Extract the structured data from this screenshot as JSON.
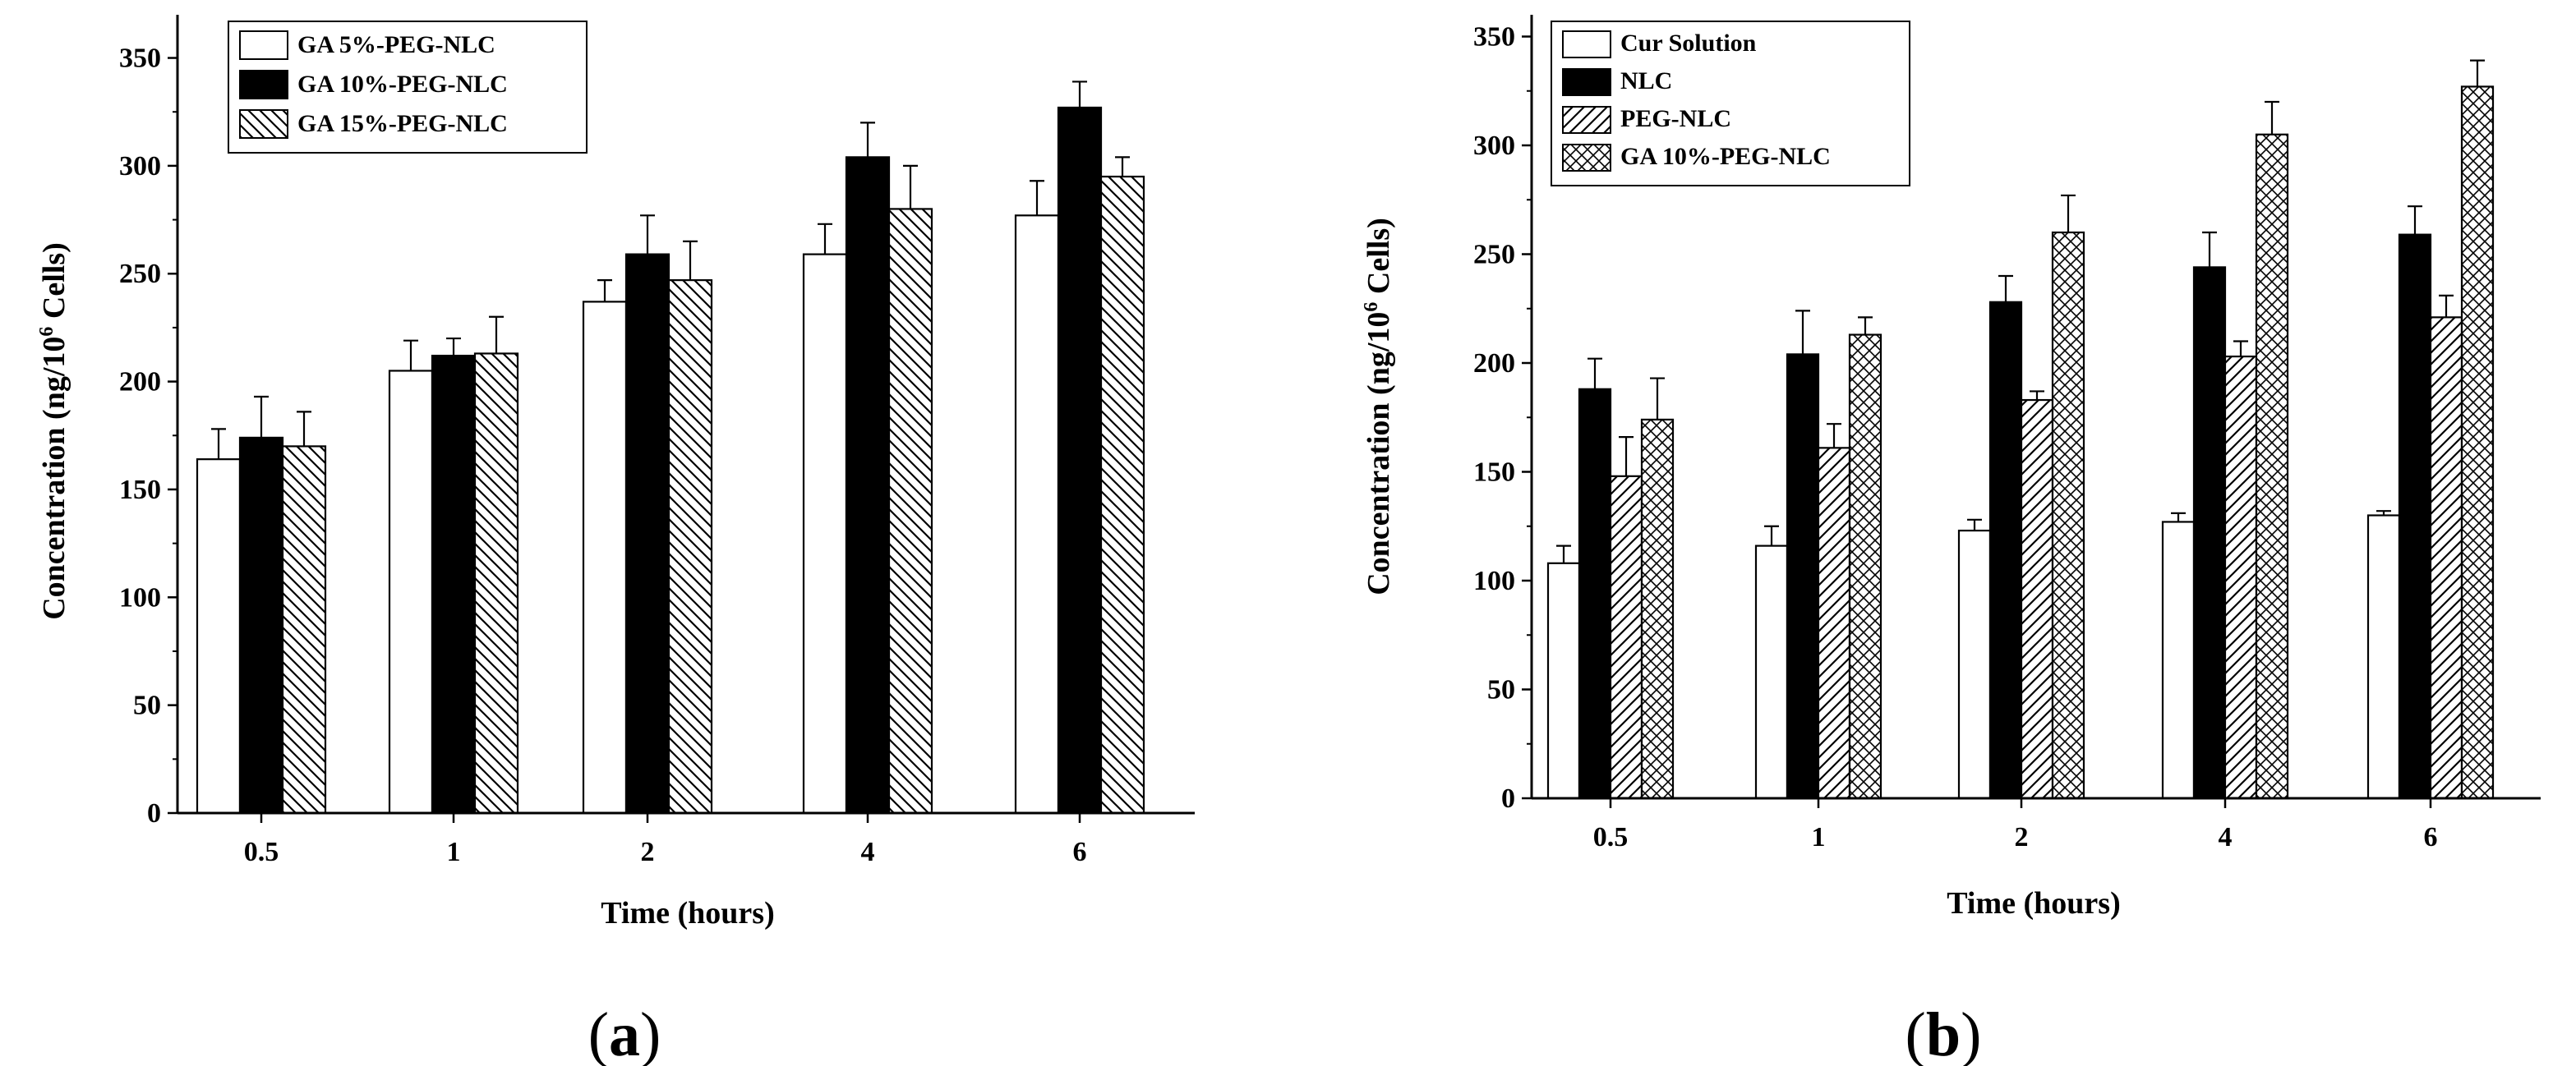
{
  "chart_data": [
    {
      "type": "bar",
      "panel_label": "a",
      "xlabel": "Time (hours)",
      "ylabel": "Concentration (ng/10",
      "ylabel_superscript": "6",
      "ylabel_suffix": " Cells)",
      "ylim": [
        0,
        370
      ],
      "yticks": [
        "0",
        "50",
        "100",
        "150",
        "200",
        "250",
        "300",
        "350"
      ],
      "categories": [
        "0.5",
        "1",
        "2",
        "4",
        "6"
      ],
      "legend_position": "top-left",
      "series": [
        {
          "name": "GA 5%-PEG-NLC",
          "fill": "white",
          "values": [
            164,
            205,
            237,
            259,
            277
          ],
          "errors": [
            14,
            14,
            10,
            14,
            16
          ]
        },
        {
          "name": "GA 10%-PEG-NLC",
          "fill": "black",
          "values": [
            174,
            212,
            259,
            304,
            327
          ],
          "errors": [
            19,
            8,
            18,
            16,
            12
          ]
        },
        {
          "name": "GA 15%-PEG-NLC",
          "fill": "hatch",
          "values": [
            170,
            213,
            247,
            280,
            295
          ],
          "errors": [
            16,
            17,
            18,
            20,
            9
          ]
        }
      ]
    },
    {
      "type": "bar",
      "panel_label": "b",
      "xlabel": "Time (hours)",
      "ylabel": "Concentration (ng/10",
      "ylabel_superscript": "6",
      "ylabel_suffix": " Cells)",
      "ylim": [
        0,
        360
      ],
      "yticks": [
        "0",
        "50",
        "100",
        "150",
        "200",
        "250",
        "300",
        "350"
      ],
      "categories": [
        "0.5",
        "1",
        "2",
        "4",
        "6"
      ],
      "legend_position": "top-left",
      "series": [
        {
          "name": "Cur Solution",
          "fill": "white",
          "values": [
            108,
            116,
            123,
            127,
            130
          ],
          "errors": [
            8,
            9,
            5,
            4,
            2
          ]
        },
        {
          "name": "NLC",
          "fill": "black",
          "values": [
            188,
            204,
            228,
            244,
            259
          ],
          "errors": [
            14,
            20,
            12,
            16,
            13
          ]
        },
        {
          "name": "PEG-NLC",
          "fill": "hatch",
          "values": [
            148,
            161,
            183,
            203,
            221
          ],
          "errors": [
            18,
            11,
            4,
            7,
            10
          ]
        },
        {
          "name": "GA 10%-PEG-NLC",
          "fill": "crosshatch",
          "values": [
            174,
            213,
            260,
            305,
            327
          ],
          "errors": [
            19,
            8,
            17,
            15,
            12
          ]
        }
      ]
    }
  ]
}
